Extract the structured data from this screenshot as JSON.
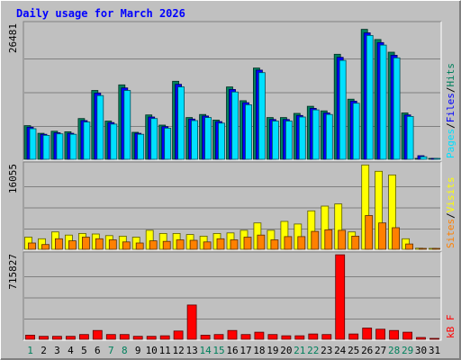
{
  "chart_data": {
    "type": "bar",
    "title": "Daily usage for March 2026",
    "categories": [
      "1",
      "2",
      "3",
      "4",
      "5",
      "6",
      "7",
      "8",
      "9",
      "10",
      "11",
      "12",
      "13",
      "14",
      "15",
      "16",
      "17",
      "18",
      "19",
      "20",
      "21",
      "22",
      "23",
      "24",
      "25",
      "26",
      "27",
      "28",
      "29",
      "30",
      "31"
    ],
    "weekend_days": [
      "1",
      "7",
      "8",
      "14",
      "15",
      "21",
      "22",
      "28",
      "29"
    ],
    "panels": [
      {
        "id": "hits",
        "ymax_label": "26481",
        "ymax": 26481,
        "ylabel_parts": [
          "Pages",
          "/",
          "Files",
          "/",
          "Hits"
        ],
        "series": [
          {
            "name": "Hits",
            "color": "#00805c",
            "values": [
              6600,
              5100,
              5500,
              5400,
              8000,
              13500,
              7500,
              14600,
              5300,
              8700,
              6700,
              15300,
              8200,
              8800,
              7700,
              14200,
              11500,
              17900,
              8200,
              8200,
              9000,
              10400,
              9500,
              20600,
              11800,
              25500,
              23500,
              21000,
              9100,
              0,
              0
            ]
          },
          {
            "name": "Files",
            "color": "#0000ff",
            "values": [
              6300,
              4900,
              5200,
              5100,
              7600,
              13000,
              7200,
              14000,
              5100,
              8300,
              6400,
              14700,
              7900,
              8500,
              7400,
              13700,
              11100,
              17500,
              7800,
              7800,
              8600,
              10000,
              9100,
              20000,
              11400,
              24800,
              22900,
              20400,
              8700,
              700,
              0
            ]
          },
          {
            "name": "Pages",
            "color": "#00e0ff",
            "values": [
              6000,
              4700,
              5000,
              4900,
              7300,
              12500,
              6900,
              13500,
              4900,
              8000,
              6100,
              14200,
              7600,
              8200,
              7100,
              13200,
              10700,
              17000,
              7500,
              7500,
              8300,
              9700,
              8800,
              19400,
              11000,
              24300,
              22400,
              19900,
              8400,
              500,
              0
            ]
          }
        ]
      },
      {
        "id": "visits",
        "ymax_label": "16055",
        "ymax": 16055,
        "ylabel_parts": [
          "Sites",
          "/",
          "Visits"
        ],
        "series": [
          {
            "name": "Visits",
            "color": "#ffff00",
            "values": [
              2300,
              2000,
              3300,
              2700,
              3000,
              2900,
              2600,
              2500,
              2300,
              3600,
              3000,
              3000,
              2800,
              2500,
              3000,
              3100,
              3600,
              5000,
              3600,
              5300,
              4800,
              7300,
              8200,
              8600,
              3300,
              16000,
              14800,
              14100,
              2000,
              200,
              0
            ]
          },
          {
            "name": "Sites",
            "color": "#ff8000",
            "values": [
              1200,
              900,
              2000,
              1600,
              2300,
              2000,
              1800,
              1400,
              1200,
              1600,
              1500,
              1800,
              1700,
              1400,
              2000,
              1800,
              2300,
              2700,
              1800,
              2400,
              2400,
              3400,
              3700,
              3600,
              2500,
              6400,
              5000,
              4100,
              1000,
              100,
              0
            ]
          }
        ]
      },
      {
        "id": "kbytes",
        "ymax_label": "715827",
        "ymax": 715827,
        "ylabel_parts": [
          "kB F"
        ],
        "series": [
          {
            "name": "kB F",
            "color": "#ff0000",
            "values": [
              35000,
              25000,
              25000,
              25000,
              40000,
              75000,
              40000,
              40000,
              25000,
              25000,
              30000,
              70000,
              290000,
              35000,
              40000,
              75000,
              40000,
              60000,
              40000,
              30000,
              30000,
              45000,
              40000,
              715000,
              45000,
              95000,
              85000,
              75000,
              60000,
              15000,
              0
            ]
          }
        ]
      }
    ]
  },
  "colors": {
    "background": "#c0c0c0",
    "plot_background": "#c0c0c0",
    "title": "#0000ff",
    "gridline": "#808080",
    "weekend_label": "#00805c",
    "weekday_label": "#0000ff"
  }
}
